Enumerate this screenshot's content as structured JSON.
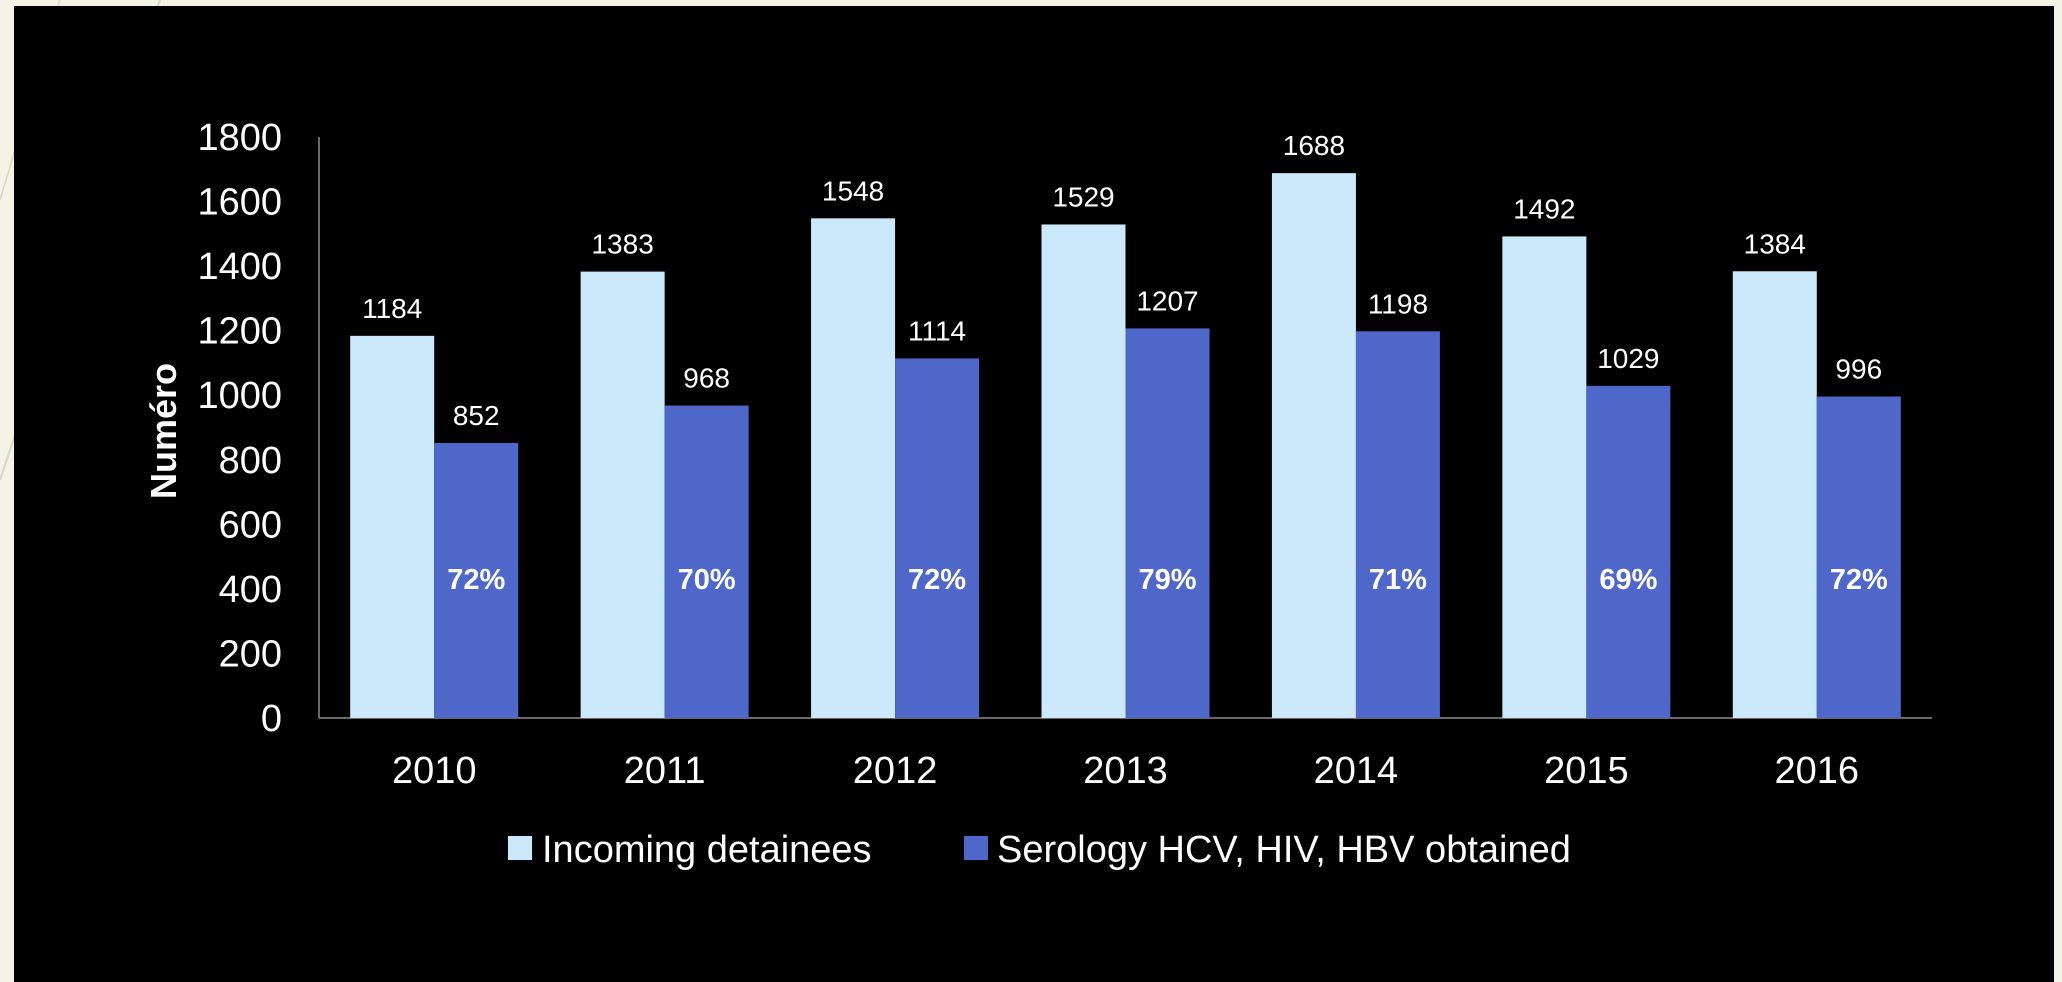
{
  "chart_data": {
    "type": "bar",
    "title": "",
    "xlabel": "",
    "ylabel": "Numéro",
    "ylim": [
      0,
      1800
    ],
    "yticks": [
      0,
      200,
      400,
      600,
      800,
      1000,
      1200,
      1400,
      1600,
      1800
    ],
    "categories": [
      "2010",
      "2011",
      "2012",
      "2013",
      "2014",
      "2015",
      "2016"
    ],
    "series": [
      {
        "name": "Incoming detainees",
        "color": "#cce9fb",
        "values": [
          1184,
          1383,
          1548,
          1529,
          1688,
          1492,
          1384
        ]
      },
      {
        "name": "Serology HCV, HIV, HBV obtained",
        "color": "#4f67c8",
        "values": [
          852,
          968,
          1114,
          1207,
          1198,
          1029,
          996
        ]
      }
    ],
    "annotations": [
      "72%",
      "70%",
      "72%",
      "79%",
      "71%",
      "69%",
      "72%"
    ],
    "legend_position": "bottom",
    "grid": false,
    "background": "#000000"
  }
}
